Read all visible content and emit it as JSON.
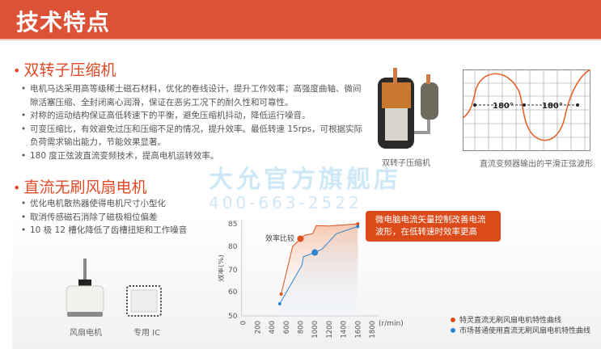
{
  "header": {
    "title": "技术特点"
  },
  "section1": {
    "title": "双转子压缩机",
    "bullets": [
      "电机马达采用高等级稀土磁石材料，优化的卷线设计，提升工作效率；高强度曲轴、微间隙活塞压缩、全封闭离心润滑，保证在恶劣工况下的耐久性和可靠性。",
      "对称的运动结构保证高低转速下的平衡，避免压缩机抖动，降低运行噪音。",
      "可变压缩比，有效避免过压和压缩不足的情况，提升效率。最低转速 15rps，可根据实际负荷需求输出能力，节能效果显著。",
      "180 度正弦波直流变频技术，提高电机运转效率。"
    ],
    "compressor_caption": "双转子压缩机",
    "wave_caption": "直流变频器输出的平滑正弦波形",
    "wave_labels": [
      "180°",
      "180°"
    ]
  },
  "section2": {
    "title": "直流无刷风扇电机",
    "bullets": [
      "优化电机散热器使得电机尺寸小型化",
      "取消传感磁石消除了磁极相位偏差",
      "10 极 12 槽化降低了齿槽扭矩和工作噪音"
    ],
    "fan_caption": "风扇电机",
    "ic_caption": "专用 IC"
  },
  "watermark": {
    "line1": "大允官方旗舰店",
    "line2": "400-663-2522"
  },
  "callout": "微电脑电流矢量控制改善电流波形，在低转速时效率更高",
  "chart_data": {
    "type": "line",
    "ylabel": "效率(%)",
    "xlabel": "(r/min)",
    "annotation": "效率比较",
    "x_ticks": [
      0,
      200,
      400,
      600,
      800,
      1000,
      1200,
      1400,
      1600,
      1800
    ],
    "y_ticks": [
      50,
      60,
      70,
      80,
      85
    ],
    "series": [
      {
        "name": "特灵直流无刷风扇电机特性曲线",
        "color": "#e0501f",
        "points": [
          [
            530,
            59
          ],
          [
            690,
            80
          ],
          [
            800,
            81.7
          ],
          [
            860,
            82.5
          ],
          [
            970,
            82.8
          ],
          [
            1020,
            84.6
          ],
          [
            1200,
            84.5
          ],
          [
            1600,
            85
          ]
        ],
        "highlight": [
          800,
          81.7
        ]
      },
      {
        "name": "市场普通使用直流无刷风扇电机特性曲线",
        "color": "#2f86d0",
        "points": [
          [
            510,
            55
          ],
          [
            820,
            72
          ],
          [
            840,
            75.6
          ],
          [
            1000,
            77.4
          ],
          [
            1100,
            78.8
          ],
          [
            1300,
            82.8
          ],
          [
            1600,
            84.4
          ]
        ],
        "highlight": [
          1000,
          77.4
        ]
      }
    ]
  }
}
